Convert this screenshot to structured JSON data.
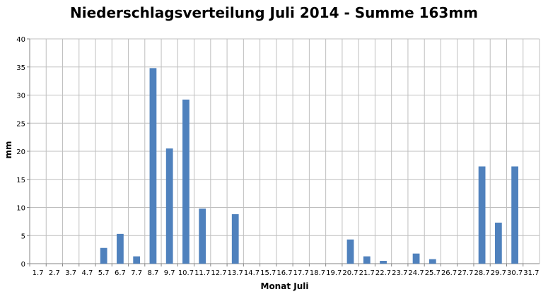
{
  "chart_data": {
    "type": "bar",
    "title": "Niederschlagsverteilung Juli 2014 - Summe 163mm",
    "xlabel": "Monat Juli",
    "ylabel": "mm",
    "ylim": [
      0,
      40
    ],
    "yticks": [
      0,
      5,
      10,
      15,
      20,
      25,
      30,
      35,
      40
    ],
    "grid": true,
    "legend": "none",
    "bar_color": "#4F81BD",
    "categories": [
      "1.7",
      "2.7",
      "3.7",
      "4.7",
      "5.7",
      "6.7",
      "7.7",
      "8.7",
      "9.7",
      "10.7",
      "11.7",
      "12.7",
      "13.7",
      "14.7",
      "15.7",
      "16.7",
      "17.7",
      "18.7",
      "19.7",
      "20.7",
      "21.7",
      "22.7",
      "23.7",
      "24.7",
      "25.7",
      "26.7",
      "27.7",
      "28.7",
      "29.7",
      "30.7",
      "31.7"
    ],
    "values": [
      0,
      0,
      0,
      0,
      2.8,
      5.3,
      1.3,
      34.8,
      20.5,
      29.2,
      9.8,
      0,
      8.8,
      0,
      0,
      0,
      0,
      0,
      0,
      4.3,
      1.3,
      0.5,
      0,
      1.8,
      0.8,
      0,
      0,
      17.3,
      7.3,
      17.3,
      0
    ]
  }
}
